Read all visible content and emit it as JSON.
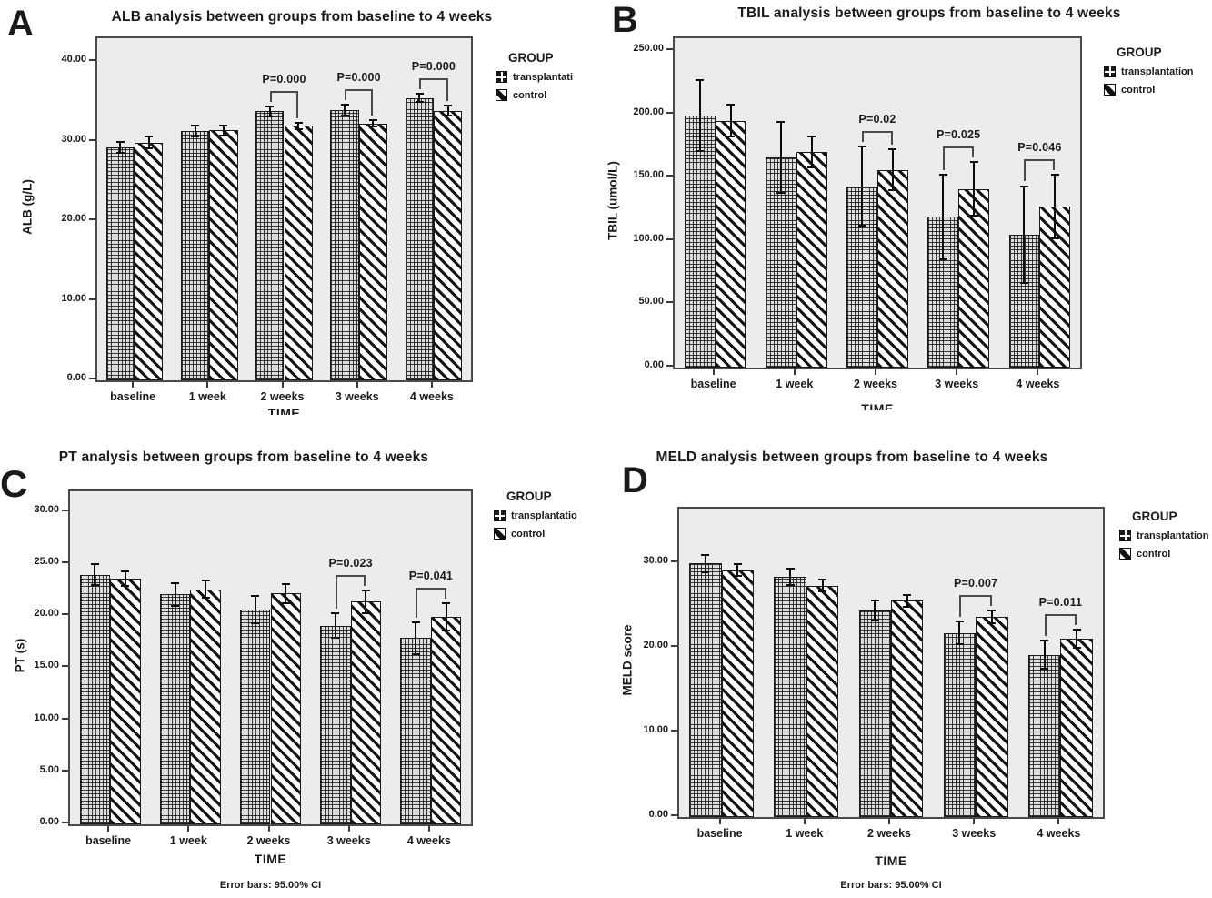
{
  "figure": {
    "background": "#ffffff",
    "plot_background": "#ececec",
    "ink": "#1a1a1a",
    "frame_border": "#4a4a4a"
  },
  "chart_data": [
    {
      "letter": "A",
      "title": "ALB analysis between groups from baseline to 4 weeks",
      "type": "bar",
      "ylabel": "ALB (g/L)",
      "xlabel": "TIME",
      "xlabel_clipped": true,
      "legend": {
        "title": "GROUP",
        "items": [
          {
            "label": "transplantati",
            "pattern": "grid"
          },
          {
            "label": "control",
            "pattern": "stripe"
          }
        ]
      },
      "categories": [
        "baseline",
        "1 week",
        "2 weeks",
        "3 weeks",
        "4 weeks"
      ],
      "ymax": 43,
      "yticks": [
        {
          "value": 0,
          "label": "0.00"
        },
        {
          "value": 10,
          "label": "10.00"
        },
        {
          "value": 20,
          "label": "20.00"
        },
        {
          "value": 30,
          "label": "30.00"
        },
        {
          "value": 40,
          "label": "40.00"
        }
      ],
      "series": [
        {
          "name": "transplantation",
          "pattern": "grid",
          "values": [
            29.3,
            31.3,
            33.8,
            34.0,
            35.5
          ],
          "errors": [
            0.8,
            0.8,
            0.7,
            0.8,
            0.6
          ]
        },
        {
          "name": "control",
          "pattern": "stripe",
          "values": [
            29.9,
            31.4,
            32.0,
            32.3,
            33.9
          ],
          "errors": [
            0.9,
            0.7,
            0.5,
            0.5,
            0.7
          ]
        }
      ],
      "annotations": [
        {
          "category_index": 2,
          "label": "P=0.000"
        },
        {
          "category_index": 3,
          "label": "P=0.000"
        },
        {
          "category_index": 4,
          "label": "P=0.000"
        }
      ]
    },
    {
      "letter": "B",
      "title": "TBIL analysis between groups from baseline to 4 weeks",
      "type": "bar",
      "ylabel": "TBIL (umol/L)",
      "xlabel": "TIME",
      "xlabel_clipped": true,
      "legend": {
        "title": "GROUP",
        "items": [
          {
            "label": "transplantation",
            "pattern": "grid"
          },
          {
            "label": "control",
            "pattern": "stripe"
          }
        ]
      },
      "categories": [
        "baseline",
        "1 week",
        "2 weeks",
        "3 weeks",
        "4 weeks"
      ],
      "ymax": 260,
      "yticks": [
        {
          "value": 0,
          "label": "0.00"
        },
        {
          "value": 50,
          "label": "50.00"
        },
        {
          "value": 100,
          "label": "100.00"
        },
        {
          "value": 150,
          "label": "150.00"
        },
        {
          "value": 200,
          "label": "200.00"
        },
        {
          "value": 250,
          "label": "250.00"
        }
      ],
      "series": [
        {
          "name": "transplantation",
          "pattern": "grid",
          "values": [
            199,
            166,
            143,
            119,
            105
          ],
          "errors": [
            29,
            29,
            32,
            34,
            39
          ]
        },
        {
          "name": "control",
          "pattern": "stripe",
          "values": [
            195,
            170,
            156,
            141,
            127
          ],
          "errors": [
            13,
            13,
            17,
            22,
            26
          ]
        }
      ],
      "annotations": [
        {
          "category_index": 2,
          "label": "P=0.02"
        },
        {
          "category_index": 3,
          "label": "P=0.025"
        },
        {
          "category_index": 4,
          "label": "P=0.046"
        }
      ]
    },
    {
      "letter": "C",
      "title": "PT analysis between groups from baseline to 4 weeks",
      "type": "bar",
      "ylabel": "PT (s)",
      "xlabel": "TIME",
      "xlabel_clipped": false,
      "footnote": "Error bars: 95.00% CI",
      "legend": {
        "title": "GROUP",
        "items": [
          {
            "label": "transplantatio",
            "pattern": "grid"
          },
          {
            "label": "control",
            "pattern": "stripe"
          }
        ]
      },
      "categories": [
        "baseline",
        "1 week",
        "2 weeks",
        "3 weeks",
        "4 weeks"
      ],
      "ymax": 32,
      "yticks": [
        {
          "value": 0,
          "label": "0.00"
        },
        {
          "value": 5,
          "label": "5.00"
        },
        {
          "value": 10,
          "label": "10.00"
        },
        {
          "value": 15,
          "label": "15.00"
        },
        {
          "value": 20,
          "label": "20.00"
        },
        {
          "value": 25,
          "label": "25.00"
        },
        {
          "value": 30,
          "label": "30.00"
        }
      ],
      "series": [
        {
          "name": "transplantation",
          "pattern": "grid",
          "values": [
            24.0,
            22.1,
            20.6,
            19.1,
            17.9
          ],
          "errors": [
            1.1,
            1.2,
            1.4,
            1.3,
            1.6
          ]
        },
        {
          "name": "control",
          "pattern": "stripe",
          "values": [
            23.6,
            22.6,
            22.2,
            21.4,
            19.9
          ],
          "errors": [
            0.8,
            0.9,
            1.0,
            1.2,
            1.4
          ]
        }
      ],
      "annotations": [
        {
          "category_index": 3,
          "label": "P=0.023"
        },
        {
          "category_index": 4,
          "label": "P=0.041"
        }
      ]
    },
    {
      "letter": "D",
      "title": "MELD analysis between groups from baseline to 4 weeks",
      "type": "bar",
      "ylabel": "MELD score",
      "xlabel": "TIME",
      "xlabel_clipped": false,
      "footnote": "Error bars: 95.00% CI",
      "legend": {
        "title": "GROUP",
        "items": [
          {
            "label": "transplantation",
            "pattern": "grid"
          },
          {
            "label": "control",
            "pattern": "stripe"
          }
        ]
      },
      "categories": [
        "baseline",
        "1 week",
        "2 weeks",
        "3 weeks",
        "4 weeks"
      ],
      "ymax": 36.5,
      "yticks": [
        {
          "value": 0,
          "label": "0.00"
        },
        {
          "value": 10,
          "label": "10.00"
        },
        {
          "value": 20,
          "label": "20.00"
        },
        {
          "value": 30,
          "label": "30.00"
        }
      ],
      "series": [
        {
          "name": "transplantation",
          "pattern": "grid",
          "values": [
            30.0,
            28.4,
            24.4,
            21.8,
            19.2
          ],
          "errors": [
            1.1,
            1.1,
            1.3,
            1.5,
            1.8
          ]
        },
        {
          "name": "control",
          "pattern": "stripe",
          "values": [
            29.2,
            27.4,
            25.6,
            23.7,
            21.1
          ],
          "errors": [
            0.8,
            0.8,
            0.8,
            0.9,
            1.2
          ]
        }
      ],
      "annotations": [
        {
          "category_index": 3,
          "label": "P=0.007"
        },
        {
          "category_index": 4,
          "label": "P=0.011"
        }
      ]
    }
  ]
}
